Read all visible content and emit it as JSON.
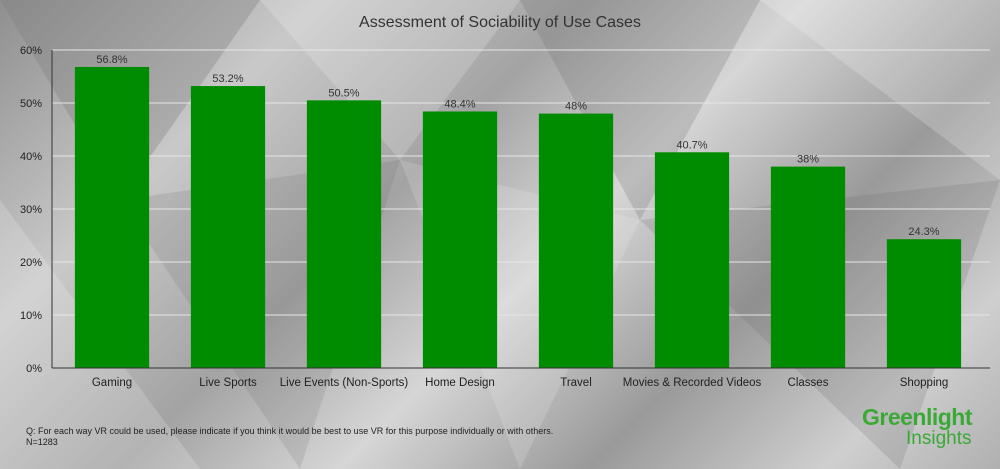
{
  "colors": {
    "bar": "#008c00",
    "grid": "#e6e6e6",
    "axis": "#333333",
    "brand": "#3aa935"
  },
  "footnote": {
    "question": "Q: For each way VR could be used, please indicate if you think it would be best to use VR for this purpose individually or with others.",
    "sample": "N=1283"
  },
  "brand": {
    "line1": "Greenlight",
    "line2": "Insights"
  },
  "chart_data": {
    "type": "bar",
    "title": "Assessment of Sociability of Use Cases",
    "xlabel": "",
    "ylabel": "",
    "categories": [
      "Gaming",
      "Live Sports",
      "Live Events (Non-Sports)",
      "Home Design",
      "Travel",
      "Movies & Recorded Videos",
      "Classes",
      "Shopping"
    ],
    "values": [
      56.8,
      53.2,
      50.5,
      48.4,
      48,
      40.7,
      38,
      24.3
    ],
    "value_labels": [
      "56.8%",
      "53.2%",
      "50.5%",
      "48.4%",
      "48%",
      "40.7%",
      "38%",
      "24.3%"
    ],
    "ylim": [
      0,
      60
    ],
    "yticks": [
      0,
      10,
      20,
      30,
      40,
      50,
      60
    ],
    "ytick_labels": [
      "0%",
      "10%",
      "20%",
      "30%",
      "40%",
      "50%",
      "60%"
    ],
    "grid": true,
    "legend": "none"
  }
}
